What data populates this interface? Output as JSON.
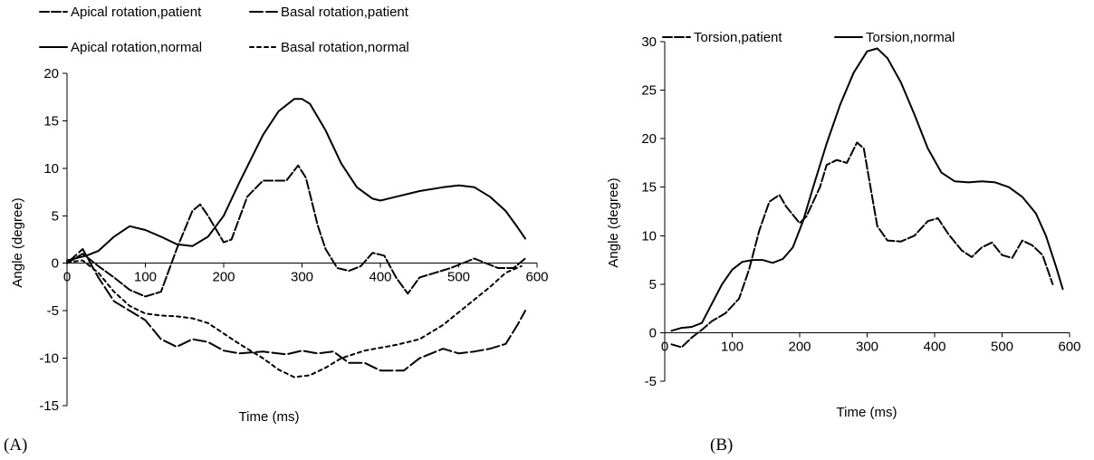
{
  "chart_data": [
    {
      "type": "line",
      "panel_label": "(A)",
      "xlabel": "Time (ms)",
      "ylabel": "Angle (degree)",
      "xlim": [
        0,
        600
      ],
      "ylim": [
        -15,
        20
      ],
      "xticks": [
        0,
        100,
        200,
        300,
        400,
        500,
        600
      ],
      "yticks": [
        -15,
        -10,
        -5,
        0,
        5,
        10,
        15,
        20
      ],
      "legend_position": "top",
      "series": [
        {
          "name": "Apical rotation,patient",
          "style": "longdash",
          "points": [
            [
              0,
              0
            ],
            [
              20,
              1
            ],
            [
              40,
              -0.3
            ],
            [
              60,
              -1.5
            ],
            [
              80,
              -2.8
            ],
            [
              100,
              -3.5
            ],
            [
              120,
              -3
            ],
            [
              140,
              1.5
            ],
            [
              160,
              5.5
            ],
            [
              170,
              6.2
            ],
            [
              180,
              5
            ],
            [
              200,
              2.2
            ],
            [
              210,
              2.5
            ],
            [
              230,
              7
            ],
            [
              250,
              8.7
            ],
            [
              280,
              8.7
            ],
            [
              295,
              10.3
            ],
            [
              305,
              9
            ],
            [
              320,
              4
            ],
            [
              330,
              1.5
            ],
            [
              345,
              -0.5
            ],
            [
              360,
              -0.8
            ],
            [
              375,
              -0.3
            ],
            [
              390,
              1.1
            ],
            [
              405,
              0.8
            ],
            [
              420,
              -1.5
            ],
            [
              435,
              -3.2
            ],
            [
              450,
              -1.5
            ],
            [
              470,
              -1
            ],
            [
              490,
              -0.5
            ],
            [
              520,
              0.5
            ],
            [
              550,
              -0.5
            ],
            [
              570,
              -0.5
            ],
            [
              585,
              0.5
            ]
          ]
        },
        {
          "name": "Basal rotation,patient",
          "style": "heavydash",
          "points": [
            [
              0,
              0
            ],
            [
              20,
              1.5
            ],
            [
              40,
              -1.5
            ],
            [
              60,
              -4
            ],
            [
              80,
              -5
            ],
            [
              100,
              -6
            ],
            [
              120,
              -8
            ],
            [
              140,
              -8.8
            ],
            [
              160,
              -8
            ],
            [
              180,
              -8.3
            ],
            [
              200,
              -9.2
            ],
            [
              220,
              -9.5
            ],
            [
              250,
              -9.3
            ],
            [
              280,
              -9.6
            ],
            [
              300,
              -9.2
            ],
            [
              320,
              -9.5
            ],
            [
              340,
              -9.3
            ],
            [
              360,
              -10.5
            ],
            [
              380,
              -10.5
            ],
            [
              400,
              -11.3
            ],
            [
              430,
              -11.3
            ],
            [
              450,
              -10
            ],
            [
              480,
              -9
            ],
            [
              500,
              -9.5
            ],
            [
              520,
              -9.3
            ],
            [
              540,
              -9
            ],
            [
              560,
              -8.5
            ],
            [
              575,
              -6.5
            ],
            [
              585,
              -5
            ]
          ]
        },
        {
          "name": "Apical rotation,normal",
          "style": "solid",
          "points": [
            [
              0,
              0.3
            ],
            [
              25,
              0.8
            ],
            [
              40,
              1.3
            ],
            [
              60,
              2.8
            ],
            [
              80,
              3.9
            ],
            [
              100,
              3.5
            ],
            [
              120,
              2.8
            ],
            [
              140,
              2
            ],
            [
              160,
              1.8
            ],
            [
              180,
              2.8
            ],
            [
              200,
              5
            ],
            [
              220,
              8.5
            ],
            [
              250,
              13.5
            ],
            [
              270,
              16
            ],
            [
              290,
              17.3
            ],
            [
              300,
              17.3
            ],
            [
              310,
              16.8
            ],
            [
              330,
              14
            ],
            [
              350,
              10.5
            ],
            [
              370,
              8
            ],
            [
              390,
              6.8
            ],
            [
              400,
              6.6
            ],
            [
              420,
              7
            ],
            [
              450,
              7.6
            ],
            [
              480,
              8
            ],
            [
              500,
              8.2
            ],
            [
              520,
              8
            ],
            [
              540,
              7
            ],
            [
              560,
              5.5
            ],
            [
              575,
              3.8
            ],
            [
              585,
              2.6
            ]
          ]
        },
        {
          "name": "Basal rotation,normal",
          "style": "shortdash",
          "points": [
            [
              0,
              0.1
            ],
            [
              20,
              0.3
            ],
            [
              40,
              -1
            ],
            [
              60,
              -3
            ],
            [
              80,
              -4.5
            ],
            [
              100,
              -5.3
            ],
            [
              120,
              -5.5
            ],
            [
              140,
              -5.6
            ],
            [
              160,
              -5.8
            ],
            [
              180,
              -6.3
            ],
            [
              200,
              -7.4
            ],
            [
              220,
              -8.5
            ],
            [
              250,
              -10
            ],
            [
              270,
              -11.2
            ],
            [
              290,
              -12
            ],
            [
              310,
              -11.8
            ],
            [
              330,
              -11
            ],
            [
              350,
              -10
            ],
            [
              380,
              -9.2
            ],
            [
              420,
              -8.6
            ],
            [
              450,
              -8
            ],
            [
              480,
              -6.5
            ],
            [
              510,
              -4.5
            ],
            [
              540,
              -2.5
            ],
            [
              560,
              -1
            ],
            [
              580,
              -0.3
            ]
          ]
        }
      ]
    },
    {
      "type": "line",
      "panel_label": "(B)",
      "xlabel": "Time (ms)",
      "ylabel": "Angle (degree)",
      "xlim": [
        0,
        600
      ],
      "ylim": [
        -5,
        30
      ],
      "xticks": [
        0,
        100,
        200,
        300,
        400,
        500,
        600
      ],
      "yticks": [
        -5,
        0,
        5,
        10,
        15,
        20,
        25,
        30
      ],
      "legend_position": "top",
      "series": [
        {
          "name": "Torsion,patient",
          "style": "longdash",
          "points": [
            [
              10,
              -1.2
            ],
            [
              25,
              -1.5
            ],
            [
              40,
              -0.5
            ],
            [
              55,
              0.3
            ],
            [
              70,
              1.2
            ],
            [
              90,
              2
            ],
            [
              110,
              3.5
            ],
            [
              125,
              6.5
            ],
            [
              140,
              10.5
            ],
            [
              155,
              13.5
            ],
            [
              170,
              14.2
            ],
            [
              180,
              13
            ],
            [
              200,
              11.3
            ],
            [
              210,
              12
            ],
            [
              230,
              15
            ],
            [
              240,
              17.3
            ],
            [
              255,
              17.8
            ],
            [
              270,
              17.5
            ],
            [
              285,
              19.6
            ],
            [
              295,
              19
            ],
            [
              305,
              15
            ],
            [
              315,
              11
            ],
            [
              330,
              9.5
            ],
            [
              350,
              9.4
            ],
            [
              370,
              10
            ],
            [
              390,
              11.5
            ],
            [
              405,
              11.8
            ],
            [
              420,
              10.2
            ],
            [
              440,
              8.5
            ],
            [
              455,
              7.8
            ],
            [
              470,
              8.8
            ],
            [
              485,
              9.3
            ],
            [
              500,
              8
            ],
            [
              515,
              7.7
            ],
            [
              530,
              9.5
            ],
            [
              545,
              9
            ],
            [
              560,
              8
            ],
            [
              575,
              5
            ]
          ]
        },
        {
          "name": "Torsion,normal",
          "style": "solid",
          "points": [
            [
              10,
              0.2
            ],
            [
              25,
              0.5
            ],
            [
              40,
              0.6
            ],
            [
              55,
              1
            ],
            [
              70,
              3
            ],
            [
              85,
              5
            ],
            [
              100,
              6.5
            ],
            [
              115,
              7.3
            ],
            [
              130,
              7.5
            ],
            [
              145,
              7.5
            ],
            [
              160,
              7.2
            ],
            [
              175,
              7.6
            ],
            [
              190,
              8.8
            ],
            [
              205,
              11.5
            ],
            [
              220,
              15
            ],
            [
              240,
              19.5
            ],
            [
              260,
              23.5
            ],
            [
              280,
              26.8
            ],
            [
              300,
              29
            ],
            [
              315,
              29.3
            ],
            [
              330,
              28.3
            ],
            [
              350,
              25.8
            ],
            [
              370,
              22.5
            ],
            [
              390,
              19
            ],
            [
              410,
              16.5
            ],
            [
              430,
              15.6
            ],
            [
              450,
              15.5
            ],
            [
              470,
              15.6
            ],
            [
              490,
              15.5
            ],
            [
              510,
              15
            ],
            [
              530,
              14
            ],
            [
              550,
              12.3
            ],
            [
              565,
              10
            ],
            [
              580,
              6.8
            ],
            [
              590,
              4.5
            ]
          ]
        }
      ]
    }
  ]
}
